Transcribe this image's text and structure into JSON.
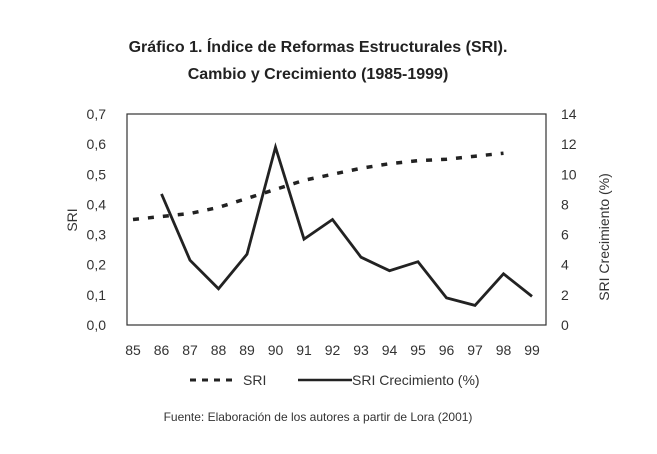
{
  "chart_data": {
    "type": "line",
    "title": "Gráfico 1. Índice de Reformas Estructurales (SRI).",
    "subtitle": "Cambio y Crecimiento (1985-1999)",
    "categories": [
      "85",
      "86",
      "87",
      "88",
      "89",
      "90",
      "91",
      "92",
      "93",
      "94",
      "95",
      "96",
      "97",
      "98",
      "99"
    ],
    "ylabel": "SRI",
    "y2label": "SRI Crecimiento (%)",
    "ylim": [
      0,
      0.7
    ],
    "y2lim": [
      0,
      14
    ],
    "yticks": [
      "0,0",
      "0,1",
      "0,2",
      "0,3",
      "0,4",
      "0,5",
      "0,6",
      "0,7"
    ],
    "y2ticks": [
      "0",
      "2",
      "4",
      "6",
      "8",
      "10",
      "12",
      "14"
    ],
    "grid": false,
    "legend_position": "bottom",
    "series": [
      {
        "name": "SRI",
        "axis": "left",
        "style": "dashed",
        "values": [
          0.35,
          0.36,
          0.37,
          0.39,
          0.42,
          0.45,
          0.48,
          0.5,
          0.52,
          0.535,
          0.545,
          0.55,
          0.56,
          0.57,
          null
        ]
      },
      {
        "name": "SRI Crecimiento (%)",
        "axis": "right",
        "style": "solid",
        "values": [
          null,
          8.7,
          4.3,
          2.4,
          4.7,
          11.8,
          5.7,
          7.0,
          4.5,
          3.6,
          4.2,
          1.8,
          1.3,
          3.4,
          1.9
        ]
      }
    ],
    "source": "Fuente: Elaboración de los autores a partir de Lora (2001)"
  }
}
